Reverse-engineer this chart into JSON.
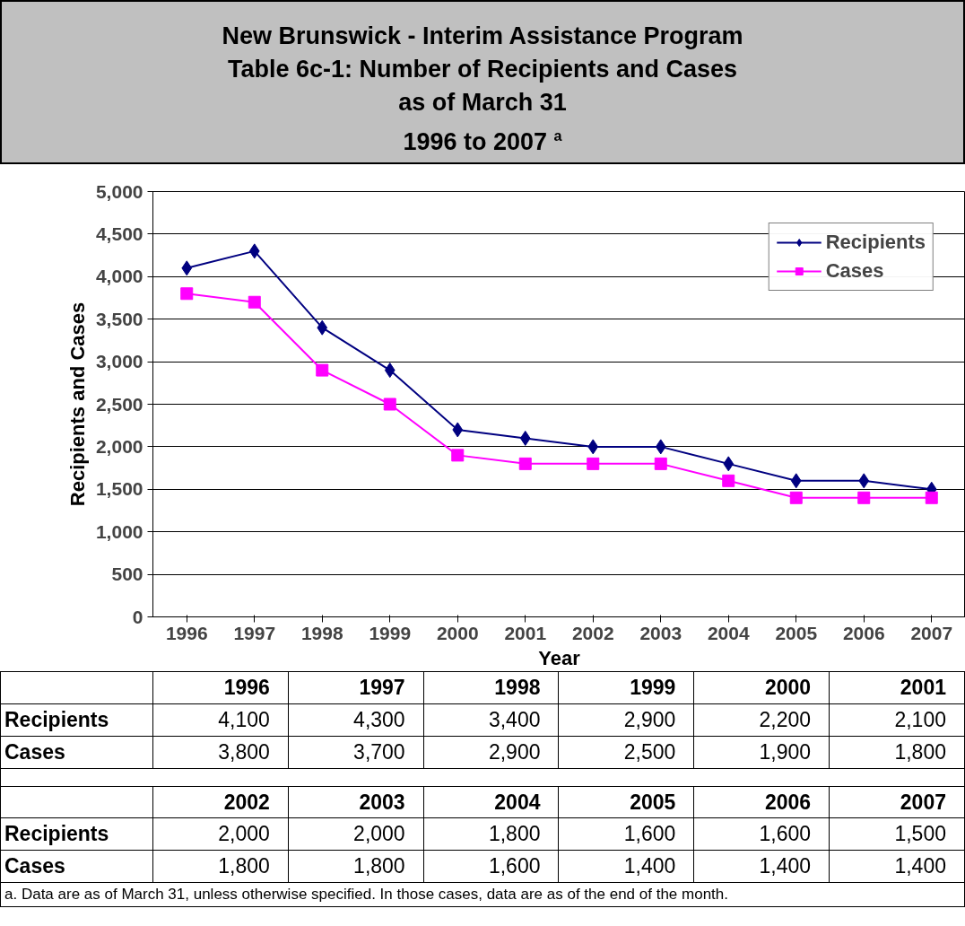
{
  "chart_data": {
    "type": "line",
    "title": "New Brunswick - Interim Assistance Program\nTable 6c-1: Number of Recipients and Cases\nas of March 31\n1996 to 2007 $^{a}$",
    "xlabel": "Year",
    "ylabel": "Recipients and Cases",
    "categories": [
      "1996",
      "1997",
      "1998",
      "1999",
      "2000",
      "2001",
      "2002",
      "2003",
      "2004",
      "2005",
      "2006",
      "2007"
    ],
    "series": [
      {
        "name": "Recipients",
        "color": "#000080",
        "marker": "diamond",
        "values": [
          4100,
          4300,
          3400,
          2900,
          2200,
          2100,
          2000,
          2000,
          1800,
          1600,
          1600,
          1500
        ]
      },
      {
        "name": "Cases",
        "color": "#ff00ff",
        "marker": "square",
        "values": [
          3800,
          3700,
          2900,
          2500,
          1900,
          1800,
          1800,
          1800,
          1600,
          1400,
          1400,
          1400
        ]
      }
    ],
    "ylim": [
      0,
      5000
    ],
    "yticks": [
      0,
      {
        "value": 500,
        "label": "500"
      },
      {
        "value": 1000,
        "label": "1,000"
      },
      {
        "value": 1500,
        "label": "1,500"
      },
      {
        "value": 2000,
        "label": "2,000"
      },
      {
        "value": 2500,
        "label": "2,500"
      },
      {
        "value": 3000,
        "label": "3,000"
      },
      {
        "value": 3500,
        "label": "3,500"
      },
      {
        "value": 4000,
        "label": "4,000"
      },
      {
        "value": 4500,
        "label": "4,500"
      },
      {
        "value": 5000,
        "label": "5,000"
      }
    ],
    "grid": "y",
    "legend": "top right",
    "line_style": "solid",
    "value_labels": [
      [
        "4,100",
        "4,300",
        "3,400",
        "2,900",
        "2,200",
        "2,100",
        "2,000",
        "2,000",
        "1,800",
        "1,600",
        "1,600",
        "1,500"
      ],
      [
        "3,800",
        "3,700",
        "2,900",
        "2,500",
        "1,900",
        "1,800",
        "1,800",
        "1,800",
        "1,600",
        "1,400",
        "1,400",
        "1,400"
      ]
    ],
    "annotations": [
      "a. Data are as of March 31, unless otherwise specified.  In those cases, data are as of the end of the month."
    ]
  }
}
